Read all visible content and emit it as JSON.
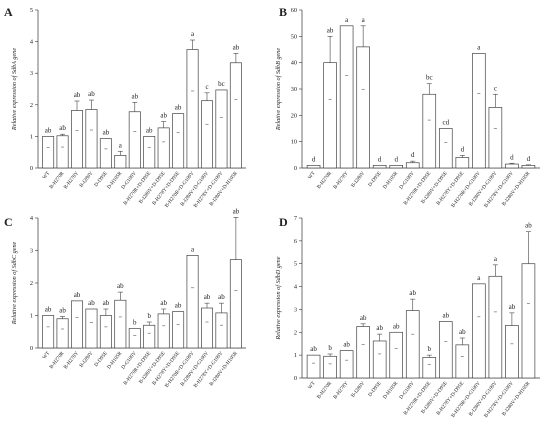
{
  "chart_data": [
    {
      "type": "bar",
      "panel": "A",
      "ylabel": "Relative expression of SdbA gene",
      "ylim": [
        0,
        5
      ],
      "yticks": [
        0,
        1,
        2,
        3,
        4,
        5
      ],
      "categories": [
        "WT",
        "B-H270R",
        "B-H278Y",
        "B-I280V",
        "D-D95E",
        "D-H105R",
        "D-G109V",
        "B-H270R+D-D95E",
        "B-I280V+D-D95E",
        "B-H278Y+D-D95E",
        "B-H270R+D-G109V",
        "B-I280V+D-G109V",
        "B-H278Y+D-G109V",
        "B-I280V+D-H105R"
      ],
      "values": [
        1.0,
        1.02,
        1.82,
        1.85,
        0.93,
        0.4,
        1.78,
        1.0,
        1.27,
        1.72,
        3.75,
        2.13,
        2.47,
        3.33
      ],
      "errors": [
        0.0,
        0.05,
        0.3,
        0.3,
        0.0,
        0.13,
        0.3,
        0.0,
        0.2,
        0.0,
        0.3,
        0.25,
        0.0,
        0.3
      ],
      "significance": [
        "ab",
        "ab",
        "ab",
        "ab",
        "ab",
        "a",
        "ab",
        "ab",
        "ab",
        "ab",
        "a",
        "c",
        "bc",
        "ab"
      ]
    },
    {
      "type": "bar",
      "panel": "B",
      "ylabel": "Relative expression of SdbB gene",
      "ylim": [
        0,
        60
      ],
      "yticks": [
        0,
        10,
        20,
        30,
        40,
        50,
        60
      ],
      "categories": [
        "WT",
        "B-H270R",
        "B-H278Y",
        "B-I280V",
        "D-D95E",
        "D-H105R",
        "D-G109V",
        "B-H270R+D-D95E",
        "B-I280V+D-D95E",
        "B-H278Y+D-D95E",
        "B-H270R+D-G109V",
        "B-I280V+D-G109V",
        "B-H278Y+D-G109V",
        "B-I280V+D-H105R"
      ],
      "values": [
        1.0,
        40,
        54,
        46,
        1.0,
        1.0,
        2.0,
        28,
        15,
        4,
        43.5,
        23,
        1.5,
        1.0
      ],
      "errors": [
        0.0,
        10,
        0.0,
        8,
        0.0,
        0.0,
        0.6,
        4,
        0.0,
        0.8,
        0.0,
        5,
        0.3,
        0.2
      ],
      "significance": [
        "d",
        "ab",
        "a",
        "a",
        "d",
        "d",
        "d",
        "bc",
        "cd",
        "d",
        "a",
        "c",
        "d",
        "d"
      ]
    },
    {
      "type": "bar",
      "panel": "C",
      "ylabel": "Relative expression of SdbC gene",
      "ylim": [
        0,
        4
      ],
      "yticks": [
        0,
        1,
        2,
        3,
        4
      ],
      "categories": [
        "WT",
        "B-H270R",
        "B-H278Y",
        "B-I280V",
        "D-D95E",
        "D-H105R",
        "D-G109V",
        "B-H270R+D-D95E",
        "B-I280V+D-D95E",
        "B-H278Y+D-D95E",
        "B-H270R+D-G109V",
        "B-I280V+D-G109V",
        "B-H278Y+D-G109V",
        "B-I280V+D-H105R"
      ],
      "values": [
        1.0,
        0.9,
        1.45,
        1.2,
        1.0,
        1.47,
        0.6,
        0.7,
        1.05,
        1.12,
        2.85,
        1.23,
        1.08,
        2.72
      ],
      "errors": [
        0.0,
        0.07,
        0.0,
        0.0,
        0.2,
        0.25,
        0.0,
        0.1,
        0.15,
        0.0,
        0.0,
        0.15,
        0.3,
        1.3
      ],
      "significance": [
        "ab",
        "ab",
        "ab",
        "ab",
        "ab",
        "ab",
        "b",
        "b",
        "ab",
        "ab",
        "a",
        "ab",
        "ab",
        "ab"
      ]
    },
    {
      "type": "bar",
      "panel": "D",
      "ylabel": "Relative expression of SdbD gene",
      "ylim": [
        0,
        7
      ],
      "yticks": [
        0,
        1,
        2,
        3,
        4,
        5,
        6,
        7
      ],
      "categories": [
        "WT",
        "B-H270R",
        "B-H278Y",
        "B-I280V",
        "D-D95E",
        "D-H105R",
        "D-G109V",
        "B-H270R+D-D95E",
        "B-I280V+D-D95E",
        "B-H278Y+D-D95E",
        "B-H270R+D-G109V",
        "B-I280V+D-G109V",
        "B-H278Y+D-G109V",
        "B-I280V+D-H105R"
      ],
      "values": [
        1.0,
        0.95,
        1.2,
        2.25,
        1.62,
        2.0,
        2.95,
        0.9,
        2.47,
        1.45,
        4.12,
        4.45,
        2.3,
        5.0
      ],
      "errors": [
        0.0,
        0.1,
        0.0,
        0.12,
        0.3,
        0.0,
        0.5,
        0.1,
        0.0,
        0.3,
        0.0,
        0.5,
        0.55,
        1.4
      ],
      "significance": [
        "ab",
        "b",
        "ab",
        "ab",
        "ab",
        "ab",
        "ab",
        "b",
        "ab",
        "ab",
        "a",
        "a",
        "ab",
        "ab"
      ]
    }
  ]
}
